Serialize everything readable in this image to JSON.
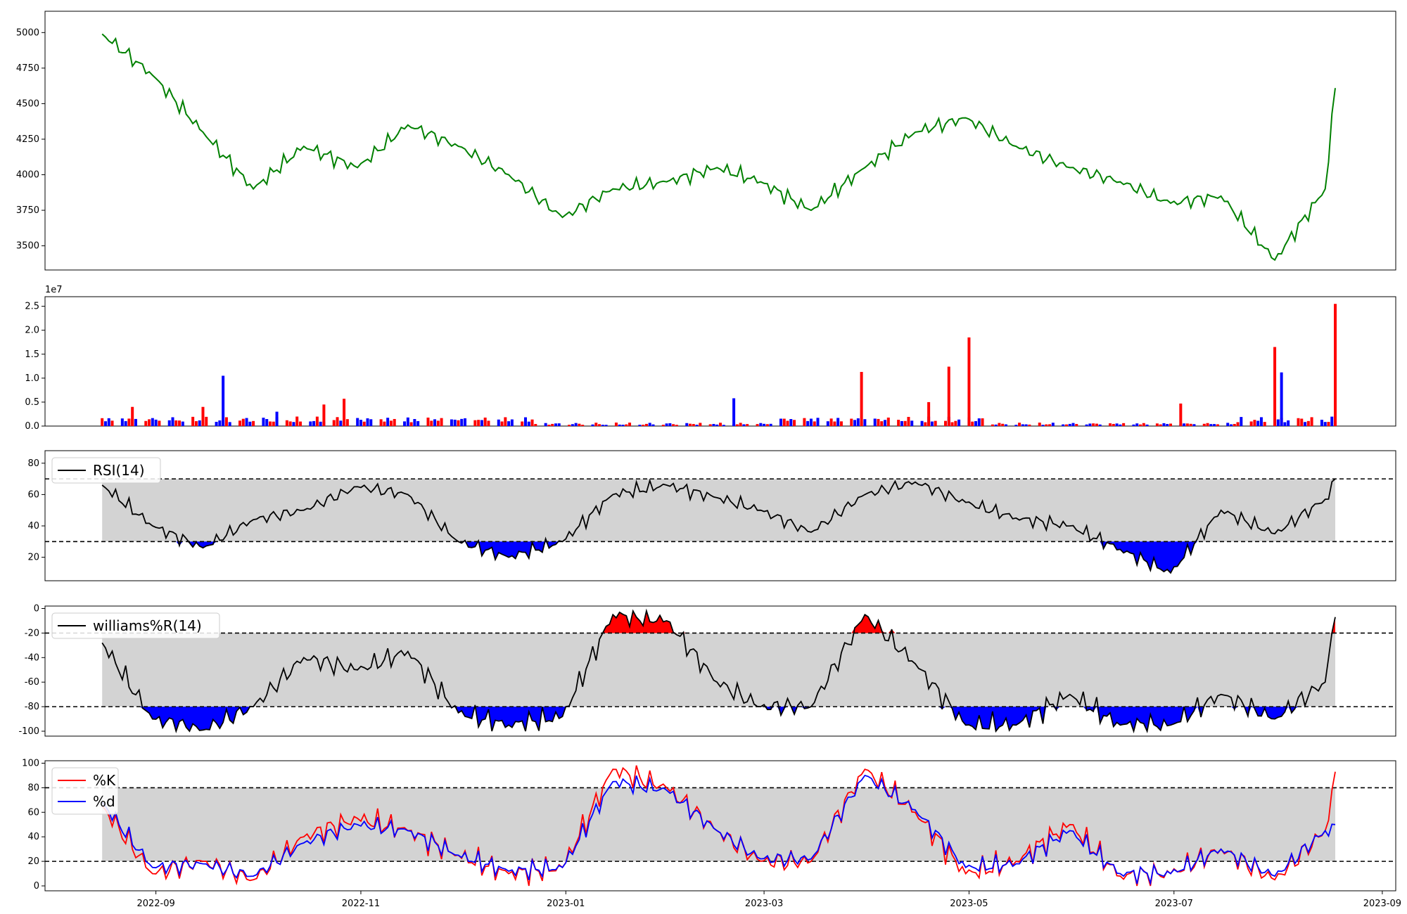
{
  "chart_data": [
    {
      "type": "line",
      "panel": "price",
      "ylim": [
        3330,
        5150
      ],
      "yticks": [
        3500,
        3750,
        4000,
        4250,
        4500,
        4750,
        5000
      ],
      "colors": {
        "line": "#008000"
      },
      "x": [
        "2022-08-16",
        "2022-08-31",
        "2022-09-15",
        "2022-09-30",
        "2022-10-15",
        "2022-10-31",
        "2022-11-15",
        "2022-11-30",
        "2022-12-15",
        "2022-12-31",
        "2023-01-15",
        "2023-01-31",
        "2023-02-15",
        "2023-02-28",
        "2023-03-15",
        "2023-03-31",
        "2023-04-15",
        "2023-04-30",
        "2023-05-15",
        "2023-05-31",
        "2023-06-15",
        "2023-06-30",
        "2023-07-15",
        "2023-07-31",
        "2023-08-15",
        "2023-08-18"
      ],
      "values": [
        4990,
        4700,
        4300,
        3900,
        4200,
        4050,
        4350,
        4200,
        4000,
        3700,
        3900,
        3950,
        4050,
        3950,
        3750,
        4050,
        4300,
        4400,
        4200,
        4050,
        3950,
        3800,
        3850,
        3400,
        3900,
        4610
      ]
    },
    {
      "type": "bar",
      "panel": "volume",
      "ylim": [
        0,
        2.7
      ],
      "yticks": [
        "0.0",
        "0.5",
        "1.0",
        "1.5",
        "2.0",
        "2.5"
      ],
      "offset_label": "1e7",
      "colors": {
        "up": "#ff0000",
        "down": "#0000ff"
      },
      "x": [
        "2022-08-25",
        "2022-09-15",
        "2022-09-21",
        "2022-10-07",
        "2022-10-21",
        "2022-10-27",
        "2023-02-20",
        "2023-03-30",
        "2023-04-19",
        "2023-04-25",
        "2023-05-01",
        "2023-07-03",
        "2023-07-31",
        "2023-08-02",
        "2023-08-18"
      ],
      "values": [
        0.4,
        0.4,
        1.05,
        0.3,
        0.45,
        0.57,
        0.58,
        1.13,
        0.5,
        1.24,
        1.85,
        0.47,
        1.65,
        1.12,
        2.55
      ],
      "directions": [
        "up",
        "up",
        "down",
        "down",
        "up",
        "up",
        "down",
        "up",
        "up",
        "up",
        "up",
        "up",
        "up",
        "down",
        "up"
      ]
    },
    {
      "type": "line",
      "panel": "rsi",
      "ylim": [
        5,
        88
      ],
      "yticks": [
        20,
        40,
        60,
        80
      ],
      "thresholds": [
        30,
        70
      ],
      "legend": [
        "RSI(14)"
      ],
      "colors": {
        "line": "#000000",
        "band": "#d3d3d3",
        "over": "#ff0000",
        "under": "#0000ff"
      },
      "x": [
        "2022-08-16",
        "2022-08-31",
        "2022-09-15",
        "2022-09-30",
        "2022-10-15",
        "2022-10-31",
        "2022-11-15",
        "2022-11-30",
        "2022-12-15",
        "2022-12-31",
        "2023-01-15",
        "2023-01-31",
        "2023-02-15",
        "2023-02-28",
        "2023-03-15",
        "2023-03-31",
        "2023-04-15",
        "2023-04-30",
        "2023-05-15",
        "2023-05-31",
        "2023-06-15",
        "2023-06-30",
        "2023-07-15",
        "2023-07-31",
        "2023-08-15",
        "2023-08-18"
      ],
      "values": [
        66,
        40,
        26,
        44,
        50,
        65,
        60,
        30,
        20,
        30,
        60,
        66,
        58,
        50,
        36,
        60,
        68,
        55,
        45,
        40,
        25,
        10,
        50,
        35,
        57,
        70
      ]
    },
    {
      "type": "line",
      "panel": "williams",
      "ylim": [
        -104,
        2
      ],
      "yticks": [
        0,
        -20,
        -40,
        -60,
        -80,
        -100
      ],
      "thresholds": [
        -20,
        -80
      ],
      "legend": [
        "williams%R(14)"
      ],
      "colors": {
        "line": "#000000",
        "band": "#d3d3d3",
        "over": "#ff0000",
        "under": "#0000ff"
      },
      "x": [
        "2022-08-16",
        "2022-08-31",
        "2022-09-15",
        "2022-09-30",
        "2022-10-15",
        "2022-10-31",
        "2022-11-15",
        "2022-11-30",
        "2022-12-15",
        "2022-12-31",
        "2023-01-15",
        "2023-01-31",
        "2023-02-15",
        "2023-02-28",
        "2023-03-15",
        "2023-03-31",
        "2023-04-15",
        "2023-04-30",
        "2023-05-15",
        "2023-05-31",
        "2023-06-15",
        "2023-06-30",
        "2023-07-15",
        "2023-07-31",
        "2023-08-15",
        "2023-08-18"
      ],
      "values": [
        -28,
        -90,
        -99,
        -80,
        -40,
        -50,
        -35,
        -85,
        -95,
        -88,
        -5,
        -10,
        -60,
        -80,
        -80,
        -5,
        -45,
        -95,
        -95,
        -70,
        -95,
        -95,
        -70,
        -90,
        -60,
        -7
      ]
    },
    {
      "type": "line",
      "panel": "stochastic",
      "ylim": [
        -4,
        102
      ],
      "yticks": [
        0,
        20,
        40,
        60,
        80,
        100
      ],
      "thresholds": [
        20,
        80
      ],
      "legend": [
        "%K",
        "%d"
      ],
      "colors": {
        "k": "#ff0000",
        "d": "#0000ff",
        "band": "#d3d3d3"
      },
      "x": [
        "2022-08-16",
        "2022-08-31",
        "2022-09-15",
        "2022-09-30",
        "2022-10-15",
        "2022-10-31",
        "2022-11-15",
        "2022-11-30",
        "2022-12-15",
        "2022-12-31",
        "2023-01-15",
        "2023-01-31",
        "2023-02-15",
        "2023-02-28",
        "2023-03-15",
        "2023-03-31",
        "2023-04-15",
        "2023-04-30",
        "2023-05-15",
        "2023-05-31",
        "2023-06-15",
        "2023-06-30",
        "2023-07-15",
        "2023-07-31",
        "2023-08-15",
        "2023-08-18"
      ],
      "series": [
        {
          "name": "%K",
          "values": [
            65,
            10,
            20,
            5,
            40,
            55,
            45,
            25,
            10,
            15,
            95,
            80,
            45,
            20,
            20,
            95,
            60,
            10,
            20,
            50,
            8,
            10,
            30,
            5,
            45,
            93
          ]
        },
        {
          "name": "%d",
          "values": [
            68,
            15,
            18,
            8,
            35,
            50,
            45,
            25,
            12,
            15,
            85,
            78,
            45,
            22,
            22,
            90,
            62,
            15,
            18,
            45,
            10,
            10,
            30,
            8,
            45,
            50
          ]
        }
      ]
    }
  ],
  "xaxis": {
    "ticks": [
      "2022-09-01",
      "2022-11-01",
      "2023-01-01",
      "2023-03-01",
      "2023-05-01",
      "2023-07-01",
      "2023-09-01"
    ],
    "labels": [
      "2022-09",
      "2022-11",
      "2023-01",
      "2023-03",
      "2023-05",
      "2023-07",
      "2023-09"
    ],
    "xlim": [
      "2022-07-30",
      "2023-09-05"
    ]
  }
}
